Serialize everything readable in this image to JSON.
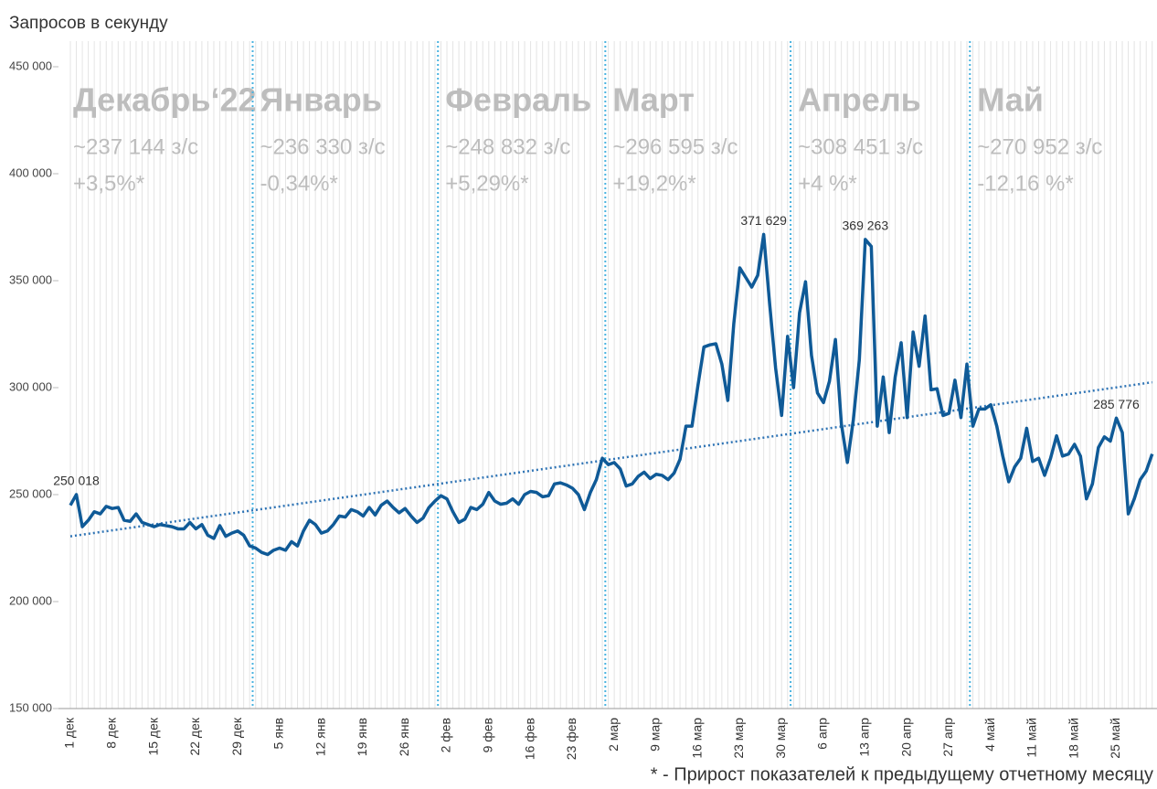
{
  "chart_data": {
    "type": "line",
    "y_label": "Запросов в секунду",
    "footnote": "* - Прирост показателей к предыдущему отчетному месяцу",
    "color": "#0f5a97",
    "trend_color": "#2f74b5",
    "separator_color": "#4ab3e0",
    "ylim": [
      150000,
      450000
    ],
    "yticks": [
      {
        "value": 150000,
        "label": "150 000"
      },
      {
        "value": 200000,
        "label": "200 000"
      },
      {
        "value": 250000,
        "label": "250 000"
      },
      {
        "value": 300000,
        "label": "300 000"
      },
      {
        "value": 350000,
        "label": "350 000"
      },
      {
        "value": 400000,
        "label": "400 000"
      },
      {
        "value": 450000,
        "label": "450 000"
      }
    ],
    "months": [
      {
        "name": "Декабрь‘22",
        "average": "~237 144 з/с",
        "growth": "+3,5%*"
      },
      {
        "name": "Январь",
        "average": "~236 330 з/с",
        "growth": "-0,34%*"
      },
      {
        "name": "Февраль",
        "average": "~248 832 з/с",
        "growth": "+5,29%*"
      },
      {
        "name": "Март",
        "average": "~296 595 з/с",
        "growth": "+19,2%*"
      },
      {
        "name": "Апрель",
        "average": "~308 451 з/с",
        "growth": "+4 %*"
      },
      {
        "name": "Май",
        "average": "~270 952 з/с",
        "growth": "-12,16 %*"
      }
    ],
    "categories": [
      "1 дек",
      null,
      null,
      null,
      null,
      null,
      null,
      "8 дек",
      null,
      null,
      null,
      null,
      null,
      null,
      "15 дек",
      null,
      null,
      null,
      null,
      null,
      null,
      "22 дек",
      null,
      null,
      null,
      null,
      null,
      null,
      "29 дек",
      null,
      null,
      null,
      null,
      null,
      null,
      "5 янв",
      null,
      null,
      null,
      null,
      null,
      null,
      "12 янв",
      null,
      null,
      null,
      null,
      null,
      null,
      "19 янв",
      null,
      null,
      null,
      null,
      null,
      null,
      "26 янв",
      null,
      null,
      null,
      null,
      null,
      null,
      "2 фев",
      null,
      null,
      null,
      null,
      null,
      null,
      "9 фев",
      null,
      null,
      null,
      null,
      null,
      null,
      "16 фев",
      null,
      null,
      null,
      null,
      null,
      null,
      "23 фев",
      null,
      null,
      null,
      null,
      null,
      null,
      "2 мар",
      null,
      null,
      null,
      null,
      null,
      null,
      "9 мар",
      null,
      null,
      null,
      null,
      null,
      null,
      "16 мар",
      null,
      null,
      null,
      null,
      null,
      null,
      "23 мар",
      null,
      null,
      null,
      null,
      null,
      null,
      "30 мар",
      null,
      null,
      null,
      null,
      null,
      null,
      "6 апр",
      null,
      null,
      null,
      null,
      null,
      null,
      "13 апр",
      null,
      null,
      null,
      null,
      null,
      null,
      "20 апр",
      null,
      null,
      null,
      null,
      null,
      null,
      "27 апр",
      null,
      null,
      null,
      null,
      null,
      null,
      "4 май",
      null,
      null,
      null,
      null,
      null,
      null,
      "11 май",
      null,
      null,
      null,
      null,
      null,
      null,
      "18 май",
      null,
      null,
      null,
      null,
      null,
      null,
      "25 май",
      null,
      null,
      null,
      null,
      null,
      null
    ],
    "values": [
      245000,
      250018,
      235000,
      238000,
      242000,
      241000,
      244500,
      243500,
      244000,
      238000,
      237500,
      241000,
      237000,
      236000,
      235000,
      236000,
      235500,
      235000,
      234000,
      234000,
      237000,
      234000,
      236000,
      231000,
      229500,
      235500,
      230500,
      232000,
      233000,
      231000,
      226000,
      225000,
      223000,
      222000,
      224000,
      225000,
      224000,
      228000,
      226000,
      233000,
      238000,
      236000,
      232000,
      233000,
      236000,
      240000,
      239500,
      243000,
      242000,
      240000,
      244000,
      240500,
      245000,
      247000,
      244000,
      241500,
      243500,
      240000,
      237000,
      239000,
      244000,
      247000,
      249500,
      248000,
      242000,
      237000,
      238500,
      244000,
      243000,
      245500,
      251000,
      247000,
      245500,
      246000,
      248000,
      245500,
      250000,
      251500,
      251000,
      249000,
      249500,
      255000,
      255500,
      254500,
      253000,
      250000,
      243000,
      251000,
      257000,
      267000,
      264000,
      265000,
      262000,
      254000,
      255000,
      258500,
      260500,
      257500,
      259500,
      259000,
      257000,
      260000,
      266500,
      282000,
      282000,
      301000,
      319000,
      320000,
      320500,
      311000,
      294000,
      330000,
      356000,
      351500,
      347000,
      352500,
      371629,
      339000,
      309000,
      287000,
      324000,
      300000,
      335000,
      349500,
      315000,
      297500,
      293000,
      303000,
      322500,
      283000,
      265000,
      285000,
      313000,
      369263,
      366000,
      282000,
      305000,
      279000,
      305000,
      321000,
      286000,
      326000,
      310000,
      333500,
      299000,
      299500,
      287000,
      288000,
      303500,
      286000,
      311000,
      282000,
      290000,
      290000,
      292000,
      282000,
      268000,
      256000,
      263000,
      267000,
      281000,
      265500,
      267000,
      259000,
      267000,
      277500,
      268000,
      269000,
      273500,
      268000,
      248000,
      255000,
      272000,
      277000,
      275000,
      285776,
      279000,
      241000,
      248000,
      257000,
      261000,
      269000
    ],
    "value_labels": [
      null,
      "250 018",
      null,
      null,
      null,
      null,
      null,
      null,
      null,
      null,
      null,
      null,
      null,
      null,
      null,
      null,
      null,
      null,
      null,
      null,
      null,
      null,
      null,
      null,
      null,
      null,
      null,
      null,
      null,
      null,
      null,
      null,
      null,
      null,
      null,
      null,
      null,
      null,
      null,
      null,
      null,
      null,
      null,
      null,
      null,
      null,
      null,
      null,
      null,
      null,
      null,
      null,
      null,
      null,
      null,
      null,
      null,
      null,
      null,
      null,
      null,
      null,
      null,
      null,
      null,
      null,
      null,
      null,
      null,
      null,
      null,
      null,
      null,
      null,
      null,
      null,
      null,
      null,
      null,
      null,
      null,
      null,
      null,
      null,
      null,
      null,
      null,
      null,
      null,
      null,
      null,
      null,
      null,
      null,
      null,
      null,
      null,
      null,
      null,
      null,
      null,
      null,
      null,
      null,
      null,
      null,
      null,
      null,
      null,
      null,
      null,
      null,
      null,
      null,
      null,
      null,
      "371 629",
      null,
      null,
      null,
      null,
      null,
      null,
      null,
      null,
      null,
      null,
      null,
      null,
      null,
      null,
      null,
      null,
      "369 263",
      null,
      null,
      null,
      null,
      null,
      null,
      null,
      null,
      null,
      null,
      null,
      null,
      null,
      null,
      null,
      null,
      null,
      null,
      null,
      null,
      null,
      null,
      null,
      null,
      null,
      null,
      null,
      null,
      null,
      null,
      null,
      null,
      null,
      null,
      null,
      null,
      null,
      null,
      null,
      null,
      null,
      "285 776",
      null,
      null,
      null,
      null,
      null,
      null
    ],
    "trend_values": [
      230500,
      302500
    ]
  }
}
